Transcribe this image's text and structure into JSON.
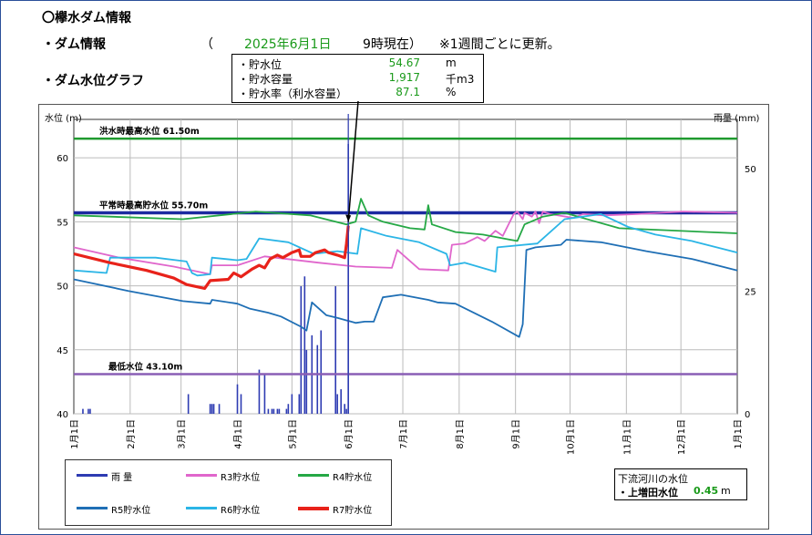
{
  "header": {
    "title": "〇欅水ダム情報",
    "dam_info_label": "・ダム情報",
    "paren_open": "（",
    "date": "2025年6月1日",
    "time_status": "9時現在）",
    "update_note": "※1週間ごとに更新。",
    "graph_label": "・ダム水位グラフ"
  },
  "info_box": {
    "rows": [
      {
        "label": "・貯水位",
        "value": "54.67",
        "unit": "m"
      },
      {
        "label": "・貯水容量",
        "value": "1,917",
        "unit": "千m3"
      },
      {
        "label": "・貯水率（利水容量）",
        "value": "87.1",
        "unit": "%"
      }
    ]
  },
  "downstream": {
    "title": "下流河川の水位",
    "label": "・上増田水位",
    "value": "0.45",
    "unit": "m"
  },
  "chart_data": {
    "type": "line",
    "ylabel_left": "水位 (m)",
    "ylabel_right": "雨量 (mm)",
    "ylim": [
      40,
      63
    ],
    "ylim_right": [
      0,
      60
    ],
    "y_ticks": [
      40,
      45,
      50,
      55,
      60
    ],
    "y_ticks_right": [
      0,
      25,
      50
    ],
    "x_ticks": [
      "1月1日",
      "2月1日",
      "3月1日",
      "4月1日",
      "5月1日",
      "6月1日",
      "7月1日",
      "8月1日",
      "9月1日",
      "10月1日",
      "11月1日",
      "12月1日",
      "1月1日"
    ],
    "x_tick_days": [
      0,
      31,
      59,
      90,
      120,
      151,
      181,
      212,
      243,
      273,
      304,
      334,
      365
    ],
    "x_range": [
      0,
      365
    ],
    "grid": true,
    "reference_lines": [
      {
        "label": "洪水時最高水位 61.50m",
        "value": 61.5,
        "color": "#1f9a2f"
      },
      {
        "label": "平常時最高貯水位 55.70m",
        "value": 55.7,
        "color": "#1c2aa0"
      },
      {
        "label": "最低水位 43.10m",
        "value": 43.1,
        "color": "#8a5fb5"
      }
    ],
    "current_marker_day": 151,
    "series": [
      {
        "name": "R3貯水位",
        "color": "#e066cc",
        "width": 1.8,
        "points": [
          [
            0,
            53
          ],
          [
            25,
            52.2
          ],
          [
            55,
            51.5
          ],
          [
            75,
            50.9
          ],
          [
            76,
            51.6
          ],
          [
            90,
            51.6
          ],
          [
            105,
            52.3
          ],
          [
            135,
            51.8
          ],
          [
            155,
            51.5
          ],
          [
            175,
            51.4
          ],
          [
            178,
            52.8
          ],
          [
            190,
            51.3
          ],
          [
            206,
            51.2
          ],
          [
            208,
            53.2
          ],
          [
            215,
            53.3
          ],
          [
            222,
            53.8
          ],
          [
            226,
            53.5
          ],
          [
            232,
            54.3
          ],
          [
            236,
            53.9
          ],
          [
            242,
            55.6
          ],
          [
            244,
            55.8
          ],
          [
            247,
            55.2
          ],
          [
            248,
            55.7
          ],
          [
            252,
            55.4
          ],
          [
            254,
            55.8
          ],
          [
            256,
            54.9
          ],
          [
            258,
            55.8
          ],
          [
            262,
            55.6
          ],
          [
            275,
            55.3
          ],
          [
            280,
            55.6
          ],
          [
            292,
            55.5
          ],
          [
            310,
            55.6
          ],
          [
            335,
            55.8
          ],
          [
            365,
            55.7
          ]
        ]
      },
      {
        "name": "R4貯水位",
        "color": "#25a845",
        "width": 1.8,
        "points": [
          [
            0,
            55.5
          ],
          [
            60,
            55.2
          ],
          [
            100,
            55.8
          ],
          [
            130,
            55.5
          ],
          [
            150,
            54.8
          ],
          [
            155,
            55.0
          ],
          [
            158,
            56.8
          ],
          [
            162,
            55.5
          ],
          [
            170,
            55.0
          ],
          [
            185,
            54.5
          ],
          [
            193,
            54.4
          ],
          [
            195,
            56.3
          ],
          [
            197,
            54.8
          ],
          [
            210,
            54.2
          ],
          [
            225,
            54.0
          ],
          [
            240,
            53.6
          ],
          [
            244,
            53.5
          ],
          [
            248,
            54.8
          ],
          [
            258,
            55.4
          ],
          [
            270,
            55.7
          ],
          [
            300,
            54.5
          ],
          [
            365,
            54.1
          ]
        ]
      },
      {
        "name": "R5貯水位",
        "color": "#1f6fb5",
        "width": 1.8,
        "points": [
          [
            0,
            50.5
          ],
          [
            30,
            49.6
          ],
          [
            60,
            48.8
          ],
          [
            75,
            48.6
          ],
          [
            76,
            48.9
          ],
          [
            90,
            48.6
          ],
          [
            97,
            48.2
          ],
          [
            107,
            47.9
          ],
          [
            114,
            47.6
          ],
          [
            125,
            46.8
          ],
          [
            128,
            46.5
          ],
          [
            131,
            48.7
          ],
          [
            139,
            47.7
          ],
          [
            145,
            47.5
          ],
          [
            155,
            47.1
          ],
          [
            160,
            47.2
          ],
          [
            165,
            47.2
          ],
          [
            170,
            49.1
          ],
          [
            180,
            49.3
          ],
          [
            195,
            48.9
          ],
          [
            200,
            48.7
          ],
          [
            210,
            48.6
          ],
          [
            230,
            47.2
          ],
          [
            245,
            46.0
          ],
          [
            247,
            47.0
          ],
          [
            249,
            52.8
          ],
          [
            254,
            53.0
          ],
          [
            268,
            53.2
          ],
          [
            271,
            53.6
          ],
          [
            290,
            53.4
          ],
          [
            315,
            52.7
          ],
          [
            340,
            52.1
          ],
          [
            365,
            51.2
          ]
        ]
      },
      {
        "name": "R6貯水位",
        "color": "#2bb5e6",
        "width": 1.8,
        "points": [
          [
            0,
            51.2
          ],
          [
            18,
            51.0
          ],
          [
            20,
            52.2
          ],
          [
            45,
            52.2
          ],
          [
            62,
            51.9
          ],
          [
            65,
            51.0
          ],
          [
            68,
            50.8
          ],
          [
            75,
            50.9
          ],
          [
            76,
            52.2
          ],
          [
            90,
            52.0
          ],
          [
            95,
            52.1
          ],
          [
            102,
            53.7
          ],
          [
            118,
            53.4
          ],
          [
            132,
            52.5
          ],
          [
            145,
            52.7
          ],
          [
            156,
            52.5
          ],
          [
            158,
            54.5
          ],
          [
            172,
            53.9
          ],
          [
            190,
            53.4
          ],
          [
            205,
            52.5
          ],
          [
            207,
            51.6
          ],
          [
            215,
            51.8
          ],
          [
            232,
            51.1
          ],
          [
            233,
            53.0
          ],
          [
            255,
            53.3
          ],
          [
            270,
            55.2
          ],
          [
            290,
            55.6
          ],
          [
            305,
            54.6
          ],
          [
            320,
            54.0
          ],
          [
            340,
            53.5
          ],
          [
            365,
            52.6
          ]
        ]
      },
      {
        "name": "R7貯水位",
        "color": "#e8221a",
        "width": 3.2,
        "points": [
          [
            0,
            52.5
          ],
          [
            20,
            51.8
          ],
          [
            40,
            51.2
          ],
          [
            55,
            50.6
          ],
          [
            62,
            50.1
          ],
          [
            72,
            49.8
          ],
          [
            75,
            50.4
          ],
          [
            85,
            50.5
          ],
          [
            88,
            51.0
          ],
          [
            92,
            50.7
          ],
          [
            98,
            51.3
          ],
          [
            102,
            51.6
          ],
          [
            105,
            51.4
          ],
          [
            108,
            52.1
          ],
          [
            112,
            52.4
          ],
          [
            115,
            52.2
          ],
          [
            120,
            52.6
          ],
          [
            124,
            52.8
          ],
          [
            125,
            52.3
          ],
          [
            130,
            52.3
          ],
          [
            133,
            52.6
          ],
          [
            138,
            52.8
          ],
          [
            140,
            52.6
          ],
          [
            145,
            52.4
          ],
          [
            149,
            52.2
          ],
          [
            150,
            53.3
          ],
          [
            151,
            54.7
          ]
        ]
      }
    ],
    "rainfall": {
      "name": "雨 量",
      "color": "#2d3bb2",
      "values": [
        [
          5,
          1
        ],
        [
          8,
          1
        ],
        [
          9,
          1
        ],
        [
          63,
          4
        ],
        [
          75,
          2
        ],
        [
          76,
          2
        ],
        [
          77,
          2
        ],
        [
          80,
          2
        ],
        [
          90,
          6
        ],
        [
          92,
          4
        ],
        [
          102,
          9
        ],
        [
          105,
          8
        ],
        [
          107,
          1
        ],
        [
          109,
          1
        ],
        [
          110,
          1
        ],
        [
          112,
          1
        ],
        [
          113,
          1
        ],
        [
          117,
          1
        ],
        [
          118,
          2
        ],
        [
          120,
          4
        ],
        [
          124,
          4
        ],
        [
          125,
          26
        ],
        [
          127,
          28
        ],
        [
          128,
          13
        ],
        [
          131,
          16
        ],
        [
          134,
          14
        ],
        [
          136,
          17
        ],
        [
          144,
          26
        ],
        [
          145,
          4
        ],
        [
          147,
          5
        ],
        [
          149,
          2
        ],
        [
          150,
          1
        ],
        [
          151,
          55
        ]
      ]
    }
  }
}
